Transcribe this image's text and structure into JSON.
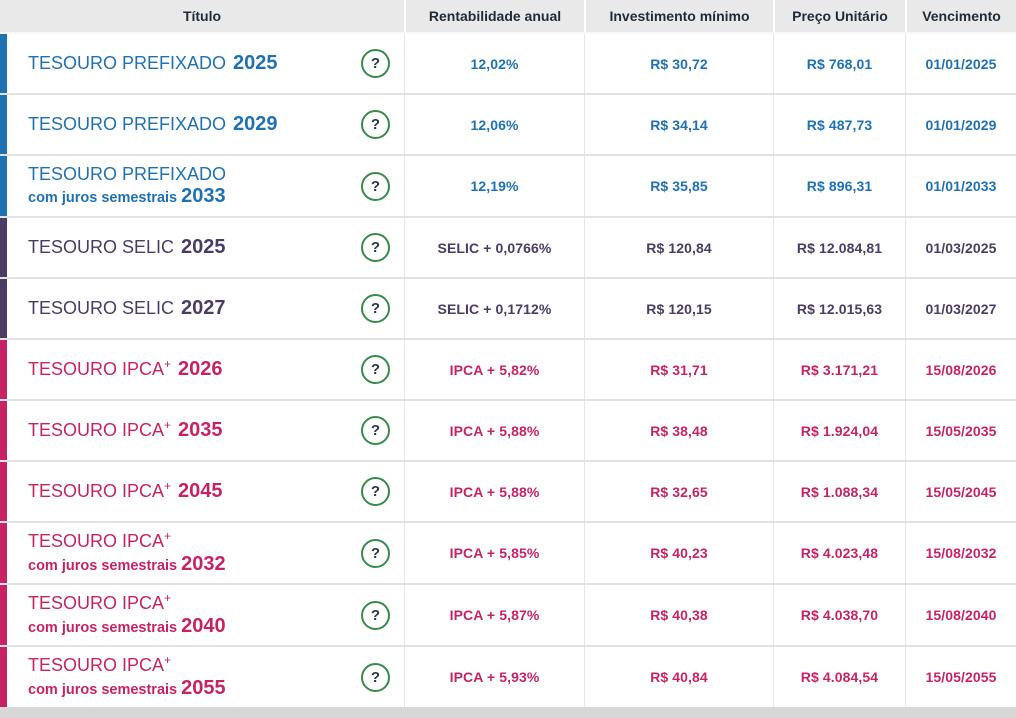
{
  "colors": {
    "blue": "#1e72b4",
    "purple": "#4a3c64",
    "pink": "#c62367",
    "help_green": "#3a8a4d",
    "header_text": "#1f2b38",
    "header_bg": "#e9e9e9"
  },
  "table": {
    "columns": [
      "Título",
      "Rentabilidade anual",
      "Investimento mínimo",
      "Preço Unitário",
      "Vencimento"
    ],
    "help_icon": "?",
    "rows": [
      {
        "title": "TESOURO PREFIXADO",
        "sup": "",
        "subtitle": "",
        "year": "2025",
        "theme": "blue",
        "rate": "12,02%",
        "min_investment": "R$ 30,72",
        "unit_price": "R$ 768,01",
        "maturity": "01/01/2025"
      },
      {
        "title": "TESOURO PREFIXADO",
        "sup": "",
        "subtitle": "",
        "year": "2029",
        "theme": "blue",
        "rate": "12,06%",
        "min_investment": "R$ 34,14",
        "unit_price": "R$ 487,73",
        "maturity": "01/01/2029"
      },
      {
        "title": "TESOURO PREFIXADO",
        "sup": "",
        "subtitle": "com juros semestrais",
        "year": "2033",
        "theme": "blue",
        "rate": "12,19%",
        "min_investment": "R$ 35,85",
        "unit_price": "R$ 896,31",
        "maturity": "01/01/2033"
      },
      {
        "title": "TESOURO SELIC",
        "sup": "",
        "subtitle": "",
        "year": "2025",
        "theme": "purple",
        "rate": "SELIC + 0,0766%",
        "min_investment": "R$ 120,84",
        "unit_price": "R$ 12.084,81",
        "maturity": "01/03/2025"
      },
      {
        "title": "TESOURO SELIC",
        "sup": "",
        "subtitle": "",
        "year": "2027",
        "theme": "purple",
        "rate": "SELIC + 0,1712%",
        "min_investment": "R$ 120,15",
        "unit_price": "R$ 12.015,63",
        "maturity": "01/03/2027"
      },
      {
        "title": "TESOURO IPCA",
        "sup": "+",
        "subtitle": "",
        "year": "2026",
        "theme": "pink",
        "rate": "IPCA + 5,82%",
        "min_investment": "R$ 31,71",
        "unit_price": "R$ 3.171,21",
        "maturity": "15/08/2026"
      },
      {
        "title": "TESOURO IPCA",
        "sup": "+",
        "subtitle": "",
        "year": "2035",
        "theme": "pink",
        "rate": "IPCA + 5,88%",
        "min_investment": "R$ 38,48",
        "unit_price": "R$ 1.924,04",
        "maturity": "15/05/2035"
      },
      {
        "title": "TESOURO IPCA",
        "sup": "+",
        "subtitle": "",
        "year": "2045",
        "theme": "pink",
        "rate": "IPCA + 5,88%",
        "min_investment": "R$ 32,65",
        "unit_price": "R$ 1.088,34",
        "maturity": "15/05/2045"
      },
      {
        "title": "TESOURO IPCA",
        "sup": "+",
        "subtitle": "com juros semestrais",
        "year": "2032",
        "theme": "pink",
        "rate": "IPCA + 5,85%",
        "min_investment": "R$ 40,23",
        "unit_price": "R$ 4.023,48",
        "maturity": "15/08/2032"
      },
      {
        "title": "TESOURO IPCA",
        "sup": "+",
        "subtitle": "com juros semestrais",
        "year": "2040",
        "theme": "pink",
        "rate": "IPCA + 5,87%",
        "min_investment": "R$ 40,38",
        "unit_price": "R$ 4.038,70",
        "maturity": "15/08/2040"
      },
      {
        "title": "TESOURO IPCA",
        "sup": "+",
        "subtitle": "com juros semestrais",
        "year": "2055",
        "theme": "pink",
        "rate": "IPCA + 5,93%",
        "min_investment": "R$ 40,84",
        "unit_price": "R$ 4.084,54",
        "maturity": "15/05/2055"
      }
    ]
  }
}
